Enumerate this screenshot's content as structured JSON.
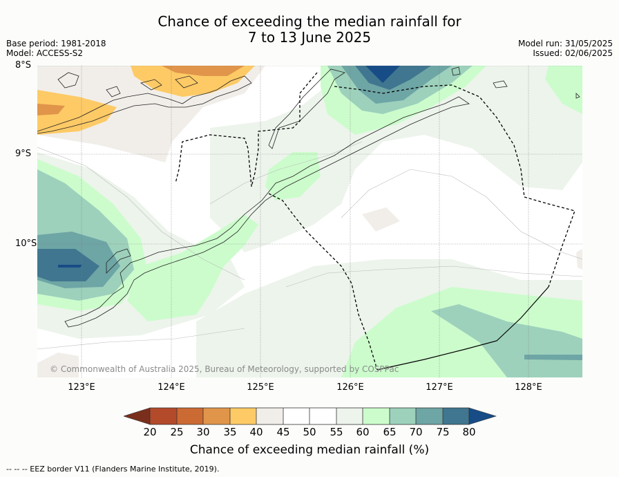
{
  "title_line1": "Chance of exceeding the median rainfall for",
  "title_line2": "7 to 13 June 2025",
  "base_period": "Base period: 1981-2018",
  "model": "Model: ACCESS-S2",
  "model_run": "Model run: 31/05/2025",
  "issued": "Issued: 02/06/2025",
  "latitudes": [
    "8°S",
    "9°S",
    "10°S"
  ],
  "longitudes": [
    "123°E",
    "124°E",
    "125°E",
    "126°E",
    "127°E",
    "128°E"
  ],
  "copyright": "© Commonwealth of Australia 2025, Bureau of Meteorology, supported by COSPPac",
  "colorbar": {
    "ticks": [
      "20",
      "25",
      "30",
      "35",
      "40",
      "45",
      "50",
      "55",
      "60",
      "65",
      "70",
      "75",
      "80"
    ],
    "colors": [
      "#b34a2a",
      "#cc6a33",
      "#e0954a",
      "#fdca66",
      "#f1eeea",
      "#ffffff",
      "#ffffff",
      "#edf4ec",
      "#ccfccc",
      "#9dd1bc",
      "#6ea5a5",
      "#40768f",
      "#174c86",
      "#7a2e1c"
    ],
    "label": "Chance of exceeding median rainfall (%)"
  },
  "footer": "--  --  -- EEZ border V11 (Flanders Marine Institute, 2019)."
}
